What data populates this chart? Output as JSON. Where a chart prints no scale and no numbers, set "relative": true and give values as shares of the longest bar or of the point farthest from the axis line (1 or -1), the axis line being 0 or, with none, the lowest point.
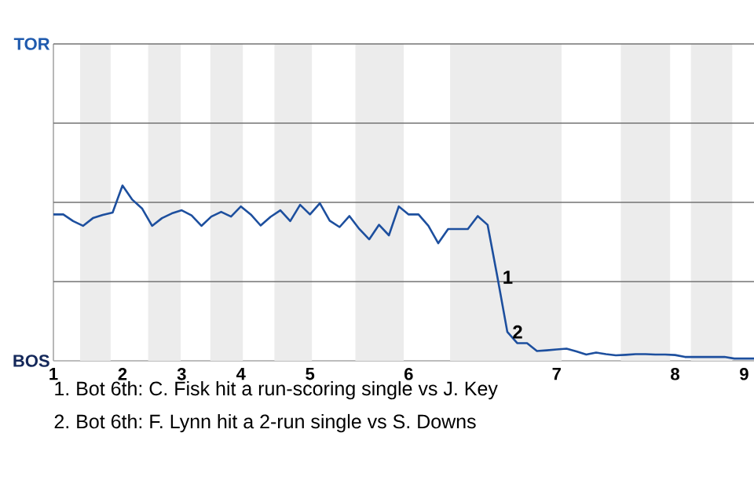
{
  "chart_data": {
    "type": "line",
    "categories": [
      "1",
      null,
      null,
      null,
      null,
      null,
      null,
      "2",
      null,
      null,
      null,
      null,
      null,
      "3",
      null,
      null,
      null,
      null,
      null,
      "4",
      null,
      null,
      null,
      null,
      null,
      null,
      "5",
      null,
      null,
      null,
      null,
      null,
      null,
      null,
      null,
      null,
      "6",
      null,
      null,
      null,
      null,
      null,
      null,
      null,
      null,
      null,
      null,
      null,
      null,
      null,
      null,
      "7",
      null,
      null,
      null,
      null,
      null,
      null,
      null,
      null,
      null,
      null,
      null,
      "8",
      null,
      null,
      null,
      null,
      null,
      null,
      "9",
      null
    ],
    "series": [
      {
        "color": "#1d4f9e",
        "values": [
          0.835,
          0.835,
          0.797,
          0.77,
          0.814,
          0.832,
          0.846,
          1,
          0.919,
          0.868,
          0.77,
          0.814,
          0.841,
          0.859,
          0.83,
          0.77,
          0.823,
          0.85,
          0.823,
          0.881,
          0.835,
          0.772,
          0.821,
          0.859,
          0.797,
          0.89,
          0.835,
          0.899,
          0.799,
          0.763,
          0.826,
          0.752,
          0.693,
          0.776,
          0.716,
          0.881,
          0.835,
          0.835,
          0.77,
          0.671,
          0.752,
          0.752,
          0.752,
          0.826,
          0.776,
          0.477,
          0.165,
          0.101,
          0.101,
          0.056,
          0.06,
          0.065,
          0.069,
          0.054,
          0.036,
          0.047,
          0.038,
          0.031,
          0.034,
          0.038,
          0.038,
          0.036,
          0.036,
          0.033,
          0.022,
          0.022,
          0.022,
          0.022,
          0.022,
          0.013,
          0.013,
          0.013
        ]
      }
    ],
    "relative": true,
    "ref_lines": [
      {
        "axis": "y",
        "value": 0.452,
        "color": "#737373"
      },
      {
        "axis": "y",
        "value": 0.904,
        "color": "#737373"
      },
      {
        "axis": "y",
        "value": 1.356,
        "color": "#737373"
      }
    ],
    "marker": "none",
    "line_style": "solid",
    "annotations": [
      "TOR",
      "BOS",
      "1",
      "2",
      "1. Bot 6th: C. Fisk hit a run-scoring single vs J. Key",
      "2. Bot 6th: F. Lynn hit a 2-run single vs S. Downs"
    ]
  }
}
